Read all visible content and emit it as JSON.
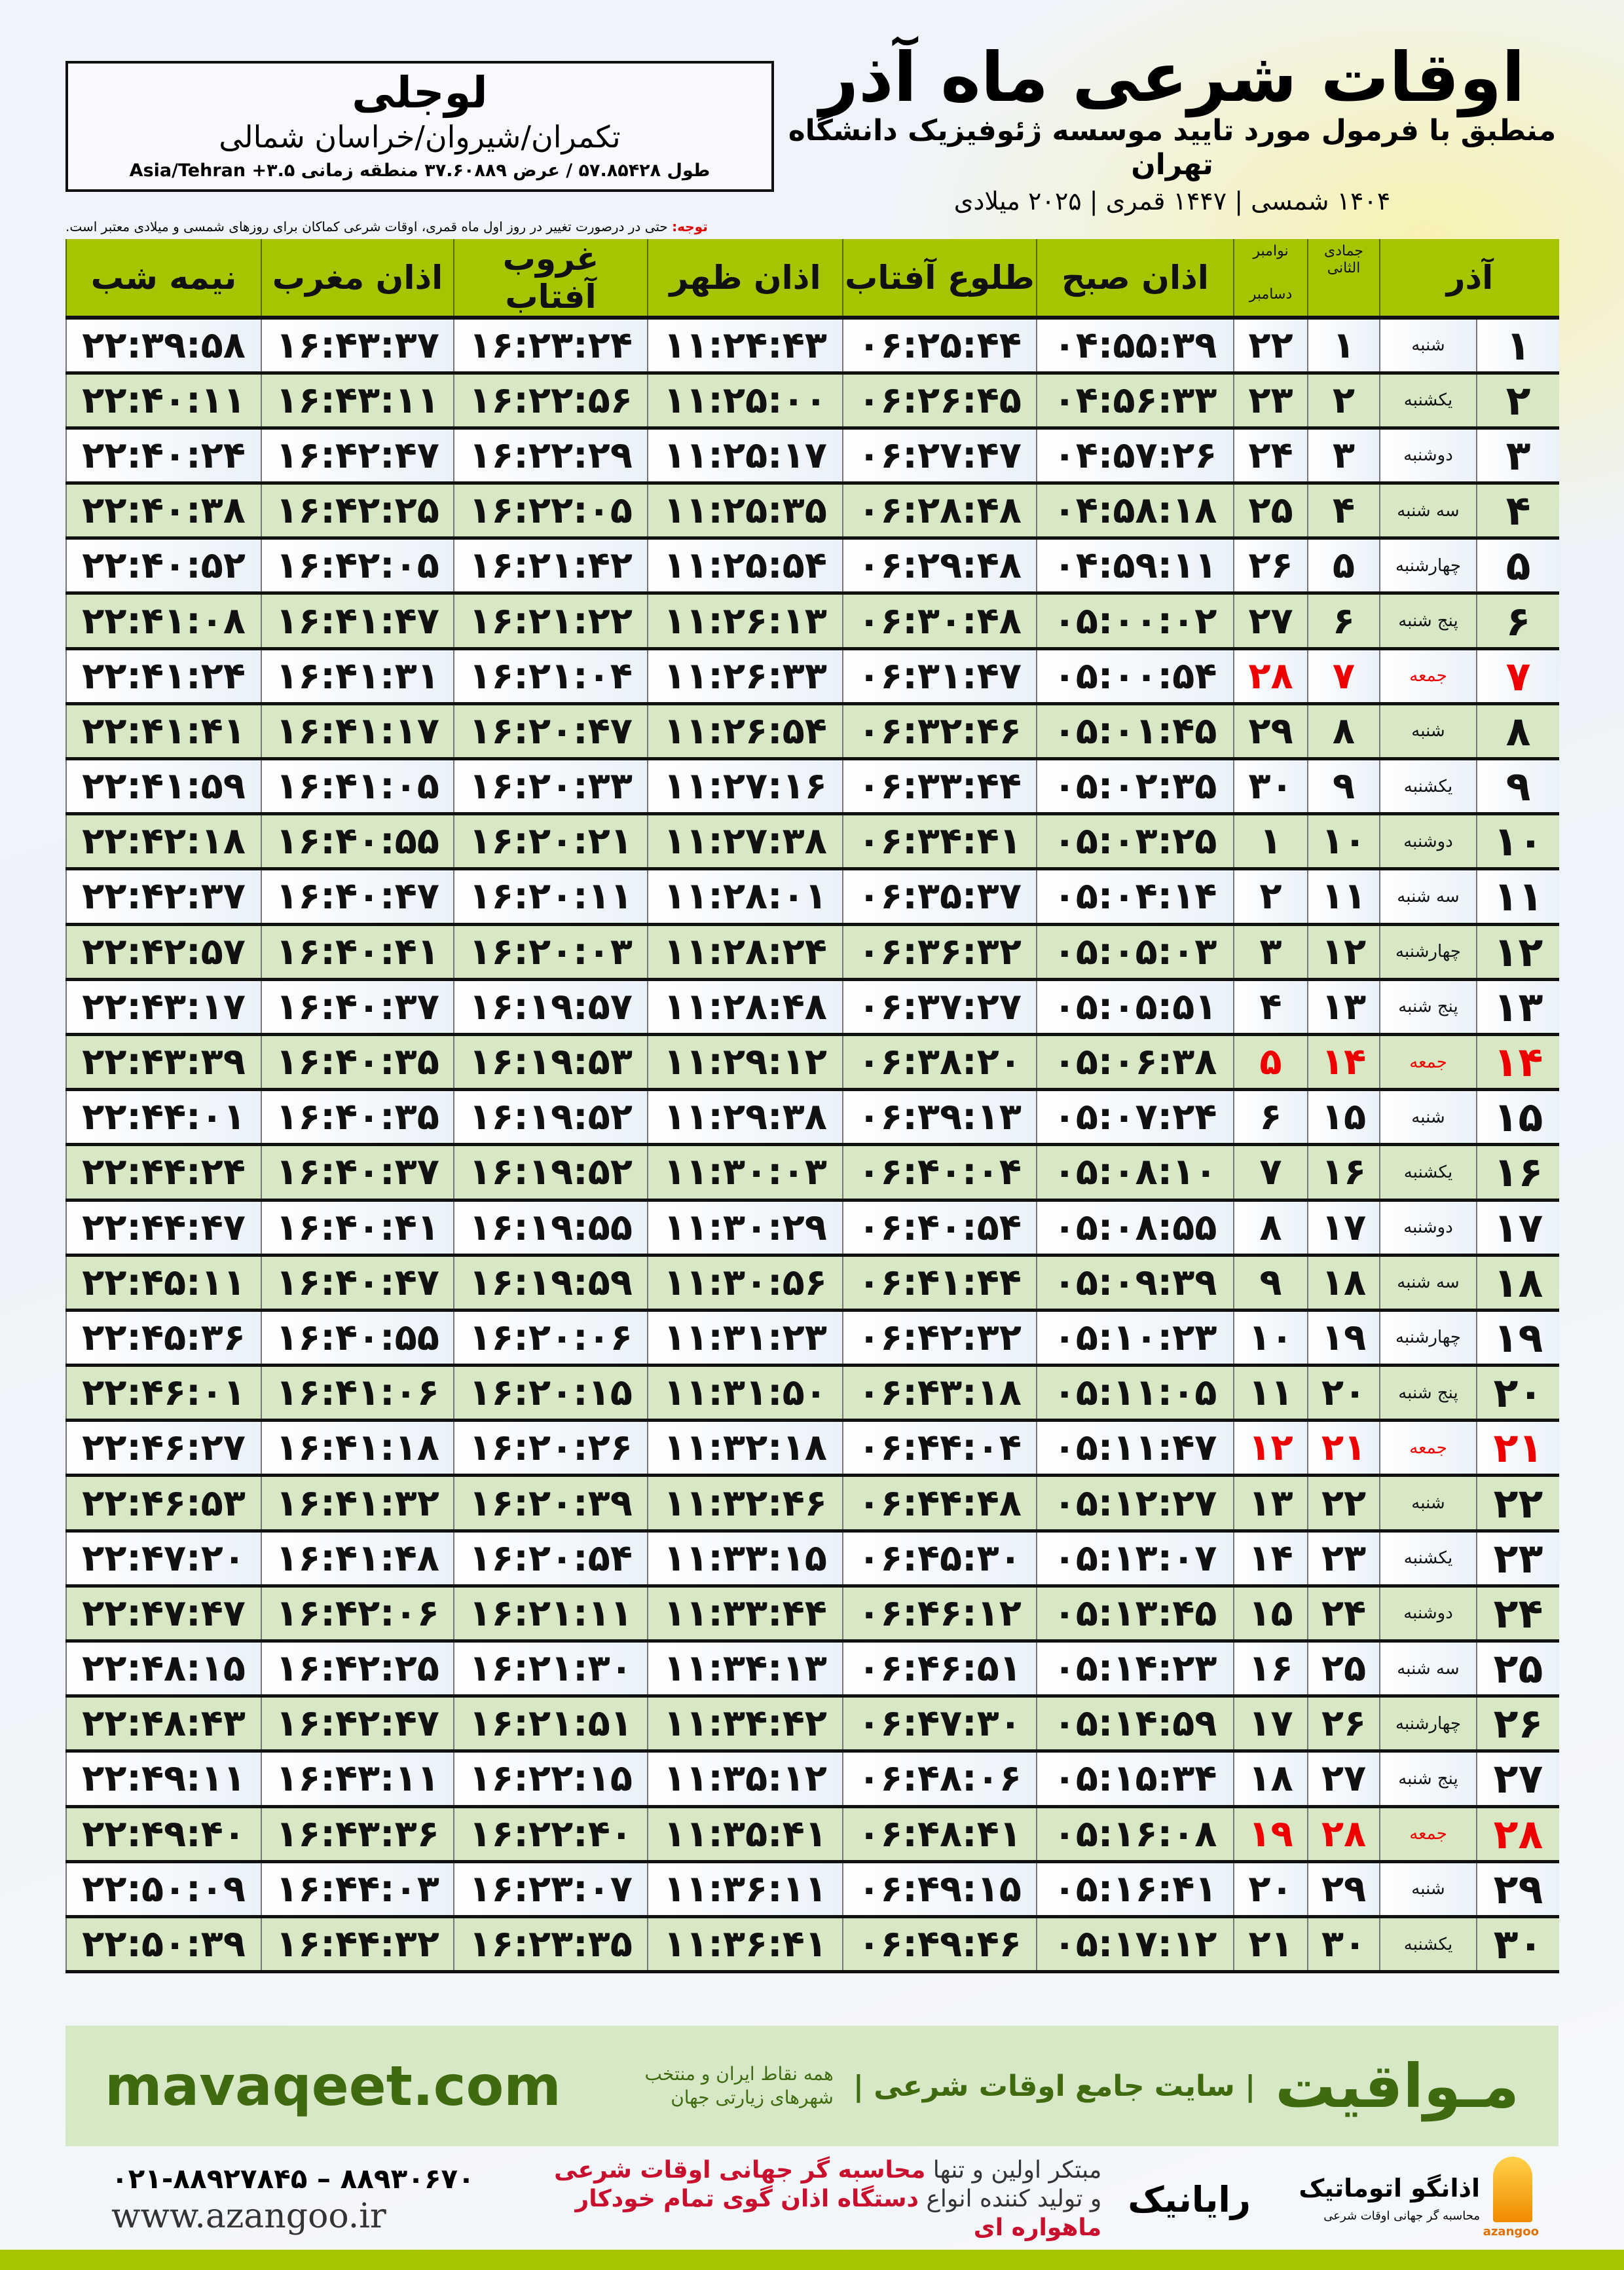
{
  "location": {
    "name": "لوجلی",
    "path": "تکمران/شیروان/خراسان شمالی",
    "coords": "طول ۵۷.۸۵۴۲۸ / عرض ۳۷.۶۰۸۸۹ منطقه زمانی ۳.۵+ Asia/Tehran"
  },
  "title": {
    "main": "اوقات شرعی ماه آذر",
    "subtitle": "منطبق با فرمول مورد تایید موسسه ژئوفیزیک دانشگاه تهران",
    "dates": "۱۴۰۴ شمسی | ۱۴۴۷ قمری | ۲۰۲۵ میلادی"
  },
  "note": {
    "label": "توجه:",
    "text": " حتی در درصورت تغییر در روز اول ماه قمری، اوقات شرعی کماکان برای روزهای شمسی و میلادی معتبر است."
  },
  "table": {
    "headers": {
      "azar": "آذر",
      "jumada": "جمادی الثانی",
      "november": "نوامبر",
      "december": "دسامبر",
      "subh": "اذان صبح",
      "sunrise": "طلوع آفتاب",
      "zuhr": "اذان ظهر",
      "sunset": "غروب آفتاب",
      "maghrib": "اذان مغرب",
      "midnight": "نیمه شب"
    },
    "friday_color": "#e00000",
    "rows": [
      {
        "day": "۱",
        "wd": "شنبه",
        "q": "۱",
        "m": "۲۲",
        "subh": "۰۴:۵۵:۳۹",
        "sunrise": "۰۶:۲۵:۴۴",
        "zuhr": "۱۱:۲۴:۴۳",
        "sunset": "۱۶:۲۳:۲۴",
        "maghrib": "۱۶:۴۳:۳۷",
        "midnight": "۲۲:۳۹:۵۸"
      },
      {
        "day": "۲",
        "wd": "یکشنبه",
        "q": "۲",
        "m": "۲۳",
        "subh": "۰۴:۵۶:۳۳",
        "sunrise": "۰۶:۲۶:۴۵",
        "zuhr": "۱۱:۲۵:۰۰",
        "sunset": "۱۶:۲۲:۵۶",
        "maghrib": "۱۶:۴۳:۱۱",
        "midnight": "۲۲:۴۰:۱۱"
      },
      {
        "day": "۳",
        "wd": "دوشنبه",
        "q": "۳",
        "m": "۲۴",
        "subh": "۰۴:۵۷:۲۶",
        "sunrise": "۰۶:۲۷:۴۷",
        "zuhr": "۱۱:۲۵:۱۷",
        "sunset": "۱۶:۲۲:۲۹",
        "maghrib": "۱۶:۴۲:۴۷",
        "midnight": "۲۲:۴۰:۲۴"
      },
      {
        "day": "۴",
        "wd": "سه شنبه",
        "q": "۴",
        "m": "۲۵",
        "subh": "۰۴:۵۸:۱۸",
        "sunrise": "۰۶:۲۸:۴۸",
        "zuhr": "۱۱:۲۵:۳۵",
        "sunset": "۱۶:۲۲:۰۵",
        "maghrib": "۱۶:۴۲:۲۵",
        "midnight": "۲۲:۴۰:۳۸"
      },
      {
        "day": "۵",
        "wd": "چهارشنبه",
        "q": "۵",
        "m": "۲۶",
        "subh": "۰۴:۵۹:۱۱",
        "sunrise": "۰۶:۲۹:۴۸",
        "zuhr": "۱۱:۲۵:۵۴",
        "sunset": "۱۶:۲۱:۴۲",
        "maghrib": "۱۶:۴۲:۰۵",
        "midnight": "۲۲:۴۰:۵۲"
      },
      {
        "day": "۶",
        "wd": "پنج شنبه",
        "q": "۶",
        "m": "۲۷",
        "subh": "۰۵:۰۰:۰۲",
        "sunrise": "۰۶:۳۰:۴۸",
        "zuhr": "۱۱:۲۶:۱۳",
        "sunset": "۱۶:۲۱:۲۲",
        "maghrib": "۱۶:۴۱:۴۷",
        "midnight": "۲۲:۴۱:۰۸"
      },
      {
        "day": "۷",
        "wd": "جمعه",
        "q": "۷",
        "m": "۲۸",
        "subh": "۰۵:۰۰:۵۴",
        "sunrise": "۰۶:۳۱:۴۷",
        "zuhr": "۱۱:۲۶:۳۳",
        "sunset": "۱۶:۲۱:۰۴",
        "maghrib": "۱۶:۴۱:۳۱",
        "midnight": "۲۲:۴۱:۲۴",
        "friday": true
      },
      {
        "day": "۸",
        "wd": "شنبه",
        "q": "۸",
        "m": "۲۹",
        "subh": "۰۵:۰۱:۴۵",
        "sunrise": "۰۶:۳۲:۴۶",
        "zuhr": "۱۱:۲۶:۵۴",
        "sunset": "۱۶:۲۰:۴۷",
        "maghrib": "۱۶:۴۱:۱۷",
        "midnight": "۲۲:۴۱:۴۱"
      },
      {
        "day": "۹",
        "wd": "یکشنبه",
        "q": "۹",
        "m": "۳۰",
        "subh": "۰۵:۰۲:۳۵",
        "sunrise": "۰۶:۳۳:۴۴",
        "zuhr": "۱۱:۲۷:۱۶",
        "sunset": "۱۶:۲۰:۳۳",
        "maghrib": "۱۶:۴۱:۰۵",
        "midnight": "۲۲:۴۱:۵۹"
      },
      {
        "day": "۱۰",
        "wd": "دوشنبه",
        "q": "۱۰",
        "m": "۱",
        "subh": "۰۵:۰۳:۲۵",
        "sunrise": "۰۶:۳۴:۴۱",
        "zuhr": "۱۱:۲۷:۳۸",
        "sunset": "۱۶:۲۰:۲۱",
        "maghrib": "۱۶:۴۰:۵۵",
        "midnight": "۲۲:۴۲:۱۸"
      },
      {
        "day": "۱۱",
        "wd": "سه شنبه",
        "q": "۱۱",
        "m": "۲",
        "subh": "۰۵:۰۴:۱۴",
        "sunrise": "۰۶:۳۵:۳۷",
        "zuhr": "۱۱:۲۸:۰۱",
        "sunset": "۱۶:۲۰:۱۱",
        "maghrib": "۱۶:۴۰:۴۷",
        "midnight": "۲۲:۴۲:۳۷"
      },
      {
        "day": "۱۲",
        "wd": "چهارشنبه",
        "q": "۱۲",
        "m": "۳",
        "subh": "۰۵:۰۵:۰۳",
        "sunrise": "۰۶:۳۶:۳۲",
        "zuhr": "۱۱:۲۸:۲۴",
        "sunset": "۱۶:۲۰:۰۳",
        "maghrib": "۱۶:۴۰:۴۱",
        "midnight": "۲۲:۴۲:۵۷"
      },
      {
        "day": "۱۳",
        "wd": "پنج شنبه",
        "q": "۱۳",
        "m": "۴",
        "subh": "۰۵:۰۵:۵۱",
        "sunrise": "۰۶:۳۷:۲۷",
        "zuhr": "۱۱:۲۸:۴۸",
        "sunset": "۱۶:۱۹:۵۷",
        "maghrib": "۱۶:۴۰:۳۷",
        "midnight": "۲۲:۴۳:۱۷"
      },
      {
        "day": "۱۴",
        "wd": "جمعه",
        "q": "۱۴",
        "m": "۵",
        "subh": "۰۵:۰۶:۳۸",
        "sunrise": "۰۶:۳۸:۲۰",
        "zuhr": "۱۱:۲۹:۱۲",
        "sunset": "۱۶:۱۹:۵۳",
        "maghrib": "۱۶:۴۰:۳۵",
        "midnight": "۲۲:۴۳:۳۹",
        "friday": true
      },
      {
        "day": "۱۵",
        "wd": "شنبه",
        "q": "۱۵",
        "m": "۶",
        "subh": "۰۵:۰۷:۲۴",
        "sunrise": "۰۶:۳۹:۱۳",
        "zuhr": "۱۱:۲۹:۳۸",
        "sunset": "۱۶:۱۹:۵۲",
        "maghrib": "۱۶:۴۰:۳۵",
        "midnight": "۲۲:۴۴:۰۱"
      },
      {
        "day": "۱۶",
        "wd": "یکشنبه",
        "q": "۱۶",
        "m": "۷",
        "subh": "۰۵:۰۸:۱۰",
        "sunrise": "۰۶:۴۰:۰۴",
        "zuhr": "۱۱:۳۰:۰۳",
        "sunset": "۱۶:۱۹:۵۲",
        "maghrib": "۱۶:۴۰:۳۷",
        "midnight": "۲۲:۴۴:۲۴"
      },
      {
        "day": "۱۷",
        "wd": "دوشنبه",
        "q": "۱۷",
        "m": "۸",
        "subh": "۰۵:۰۸:۵۵",
        "sunrise": "۰۶:۴۰:۵۴",
        "zuhr": "۱۱:۳۰:۲۹",
        "sunset": "۱۶:۱۹:۵۵",
        "maghrib": "۱۶:۴۰:۴۱",
        "midnight": "۲۲:۴۴:۴۷"
      },
      {
        "day": "۱۸",
        "wd": "سه شنبه",
        "q": "۱۸",
        "m": "۹",
        "subh": "۰۵:۰۹:۳۹",
        "sunrise": "۰۶:۴۱:۴۴",
        "zuhr": "۱۱:۳۰:۵۶",
        "sunset": "۱۶:۱۹:۵۹",
        "maghrib": "۱۶:۴۰:۴۷",
        "midnight": "۲۲:۴۵:۱۱"
      },
      {
        "day": "۱۹",
        "wd": "چهارشنبه",
        "q": "۱۹",
        "m": "۱۰",
        "subh": "۰۵:۱۰:۲۳",
        "sunrise": "۰۶:۴۲:۳۲",
        "zuhr": "۱۱:۳۱:۲۳",
        "sunset": "۱۶:۲۰:۰۶",
        "maghrib": "۱۶:۴۰:۵۵",
        "midnight": "۲۲:۴۵:۳۶"
      },
      {
        "day": "۲۰",
        "wd": "پنج شنبه",
        "q": "۲۰",
        "m": "۱۱",
        "subh": "۰۵:۱۱:۰۵",
        "sunrise": "۰۶:۴۳:۱۸",
        "zuhr": "۱۱:۳۱:۵۰",
        "sunset": "۱۶:۲۰:۱۵",
        "maghrib": "۱۶:۴۱:۰۶",
        "midnight": "۲۲:۴۶:۰۱"
      },
      {
        "day": "۲۱",
        "wd": "جمعه",
        "q": "۲۱",
        "m": "۱۲",
        "subh": "۰۵:۱۱:۴۷",
        "sunrise": "۰۶:۴۴:۰۴",
        "zuhr": "۱۱:۳۲:۱۸",
        "sunset": "۱۶:۲۰:۲۶",
        "maghrib": "۱۶:۴۱:۱۸",
        "midnight": "۲۲:۴۶:۲۷",
        "friday": true
      },
      {
        "day": "۲۲",
        "wd": "شنبه",
        "q": "۲۲",
        "m": "۱۳",
        "subh": "۰۵:۱۲:۲۷",
        "sunrise": "۰۶:۴۴:۴۸",
        "zuhr": "۱۱:۳۲:۴۶",
        "sunset": "۱۶:۲۰:۳۹",
        "maghrib": "۱۶:۴۱:۳۲",
        "midnight": "۲۲:۴۶:۵۳"
      },
      {
        "day": "۲۳",
        "wd": "یکشنبه",
        "q": "۲۳",
        "m": "۱۴",
        "subh": "۰۵:۱۳:۰۷",
        "sunrise": "۰۶:۴۵:۳۰",
        "zuhr": "۱۱:۳۳:۱۵",
        "sunset": "۱۶:۲۰:۵۴",
        "maghrib": "۱۶:۴۱:۴۸",
        "midnight": "۲۲:۴۷:۲۰"
      },
      {
        "day": "۲۴",
        "wd": "دوشنبه",
        "q": "۲۴",
        "m": "۱۵",
        "subh": "۰۵:۱۳:۴۵",
        "sunrise": "۰۶:۴۶:۱۲",
        "zuhr": "۱۱:۳۳:۴۴",
        "sunset": "۱۶:۲۱:۱۱",
        "maghrib": "۱۶:۴۲:۰۶",
        "midnight": "۲۲:۴۷:۴۷"
      },
      {
        "day": "۲۵",
        "wd": "سه شنبه",
        "q": "۲۵",
        "m": "۱۶",
        "subh": "۰۵:۱۴:۲۳",
        "sunrise": "۰۶:۴۶:۵۱",
        "zuhr": "۱۱:۳۴:۱۳",
        "sunset": "۱۶:۲۱:۳۰",
        "maghrib": "۱۶:۴۲:۲۵",
        "midnight": "۲۲:۴۸:۱۵"
      },
      {
        "day": "۲۶",
        "wd": "چهارشنبه",
        "q": "۲۶",
        "m": "۱۷",
        "subh": "۰۵:۱۴:۵۹",
        "sunrise": "۰۶:۴۷:۳۰",
        "zuhr": "۱۱:۳۴:۴۲",
        "sunset": "۱۶:۲۱:۵۱",
        "maghrib": "۱۶:۴۲:۴۷",
        "midnight": "۲۲:۴۸:۴۳"
      },
      {
        "day": "۲۷",
        "wd": "پنج شنبه",
        "q": "۲۷",
        "m": "۱۸",
        "subh": "۰۵:۱۵:۳۴",
        "sunrise": "۰۶:۴۸:۰۶",
        "zuhr": "۱۱:۳۵:۱۲",
        "sunset": "۱۶:۲۲:۱۵",
        "maghrib": "۱۶:۴۳:۱۱",
        "midnight": "۲۲:۴۹:۱۱"
      },
      {
        "day": "۲۸",
        "wd": "جمعه",
        "q": "۲۸",
        "m": "۱۹",
        "subh": "۰۵:۱۶:۰۸",
        "sunrise": "۰۶:۴۸:۴۱",
        "zuhr": "۱۱:۳۵:۴۱",
        "sunset": "۱۶:۲۲:۴۰",
        "maghrib": "۱۶:۴۳:۳۶",
        "midnight": "۲۲:۴۹:۴۰",
        "friday": true
      },
      {
        "day": "۲۹",
        "wd": "شنبه",
        "q": "۲۹",
        "m": "۲۰",
        "subh": "۰۵:۱۶:۴۱",
        "sunrise": "۰۶:۴۹:۱۵",
        "zuhr": "۱۱:۳۶:۱۱",
        "sunset": "۱۶:۲۳:۰۷",
        "maghrib": "۱۶:۴۴:۰۳",
        "midnight": "۲۲:۵۰:۰۹"
      },
      {
        "day": "۳۰",
        "wd": "یکشنبه",
        "q": "۳۰",
        "m": "۲۱",
        "subh": "۰۵:۱۷:۱۲",
        "sunrise": "۰۶:۴۹:۴۶",
        "zuhr": "۱۱:۳۶:۴۱",
        "sunset": "۱۶:۲۳:۳۵",
        "maghrib": "۱۶:۴۴:۳۲",
        "midnight": "۲۲:۵۰:۳۹"
      }
    ]
  },
  "footer": {
    "brand": "مـواقیت",
    "brand_sub": "| سایت جامع اوقات شرعی |",
    "brand_sub2": "همه نقاط ایران و منتخب شهرهای زیارتی جهان",
    "site": "mavaqeet.com",
    "phone": "۰۲۱-۸۸۹۲۷۸۴۵ – ۸۸۹۳۰۶۷۰",
    "www": "www.azangoo.ir",
    "blurb1a": "مبتکر اولین و تنها ",
    "blurb1b": "محاسبه گر جهانی اوقات شرعی",
    "blurb2a": "و تولید کننده انواع ",
    "blurb2b": "دستگاه اذان گوی تمام خودکار ماهواره ای",
    "rayanik": "رایانیک",
    "azangoo_name": "اذانگو اتوماتیک",
    "azangoo_sub": "محاسبه گر جهانی اوقات شرعی",
    "azangoo_latin": "azangoo",
    "accent": "#a6c500",
    "brand_color": "#3f6a10"
  }
}
